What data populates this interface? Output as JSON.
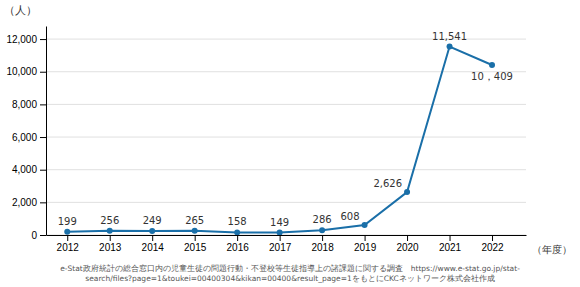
{
  "chart_data": {
    "type": "line",
    "x": [
      2012,
      2013,
      2014,
      2015,
      2016,
      2017,
      2018,
      2019,
      2020,
      2021,
      2022
    ],
    "values": [
      199,
      256,
      249,
      265,
      158,
      149,
      286,
      608,
      2626,
      11541,
      10409
    ],
    "value_labels": [
      "199",
      "256",
      "249",
      "265",
      "158",
      "149",
      "286",
      "608",
      "2,626",
      "11,541",
      "10，409"
    ],
    "data_labels": true,
    "color": "#1a6fa8",
    "marker": "circle",
    "grid": true,
    "xlim": [
      2011.5,
      2022.8
    ],
    "xticks": [
      2012,
      2013,
      2014,
      2015,
      2016,
      2017,
      2018,
      2019,
      2020,
      2021,
      2022
    ],
    "ylim": [
      0,
      12800
    ],
    "yticks": [
      0,
      {
        "value": 2000,
        "label": "2,000"
      },
      {
        "value": 4000,
        "label": "4,000"
      },
      {
        "value": 6000,
        "label": "6,000"
      },
      {
        "value": 8000,
        "label": "8,000"
      },
      {
        "value": 10000,
        "label": "10,000"
      },
      {
        "value": 12000,
        "label": "12,000"
      }
    ],
    "ylabel": "（人）",
    "xlabel": "（年度）",
    "source": "e-Stat政府統計の総合窓口内の児童生徒の問題行動・不登校等生徒指導上の諸課題に関する調査　https://www.e-stat.go.jp/stat-\nsearch/files?page=1&toukei=00400304&kikan=00400&result_page=1をもとにCKCネットワーク株式会社作成"
  }
}
